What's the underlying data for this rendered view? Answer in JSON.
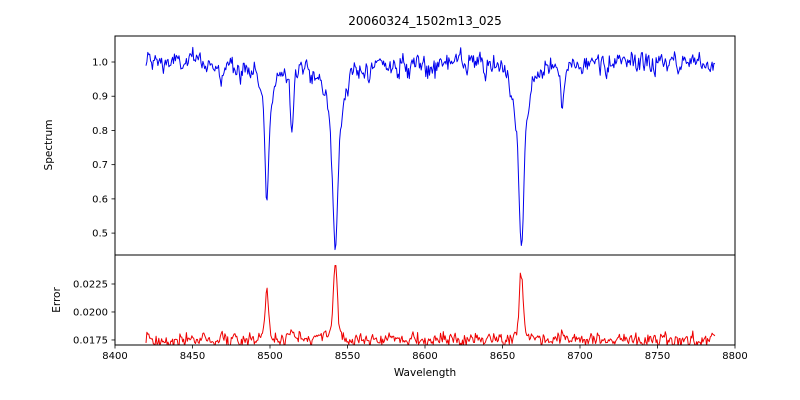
{
  "chart_data": {
    "type": "line",
    "title": "20060324_1502m13_025",
    "xlabel": "Wavelength",
    "grid": false,
    "legend": "none",
    "xlim": [
      8400,
      8800
    ],
    "x_data_range": [
      8420,
      8787
    ],
    "x_ticks": [
      {
        "value": 8400,
        "label": "8400"
      },
      {
        "value": 8450,
        "label": "8450"
      },
      {
        "value": 8500,
        "label": "8500"
      },
      {
        "value": 8550,
        "label": "8550"
      },
      {
        "value": 8600,
        "label": "8600"
      },
      {
        "value": 8650,
        "label": "8650"
      },
      {
        "value": 8700,
        "label": "8700"
      },
      {
        "value": 8750,
        "label": "8750"
      },
      {
        "value": 8800,
        "label": "8800"
      }
    ],
    "panels": [
      {
        "name": "spectrum",
        "ylabel": "Spectrum",
        "line_color": "#0000ee",
        "ylim": [
          0.436,
          1.076
        ],
        "y_ticks": [
          {
            "value": 0.5,
            "label": "0.5"
          },
          {
            "value": 0.6,
            "label": "0.6"
          },
          {
            "value": 0.7,
            "label": "0.7"
          },
          {
            "value": 0.8,
            "label": "0.8"
          },
          {
            "value": 0.9,
            "label": "0.9"
          },
          {
            "value": 1.0,
            "label": "1.0"
          }
        ],
        "continuum": 1.0,
        "noise_sigma": 0.015,
        "noise_ar": 0.45,
        "absorption_lines": [
          {
            "center": 8498.0,
            "depth": 0.4,
            "core": 1.1,
            "wing": 3.5
          },
          {
            "center": 8542.1,
            "depth": 0.55,
            "core": 1.4,
            "wing": 5.0
          },
          {
            "center": 8662.1,
            "depth": 0.54,
            "core": 1.3,
            "wing": 5.0
          },
          {
            "center": 8514.2,
            "depth": 0.16,
            "core": 0.9,
            "wing": 1.4
          },
          {
            "center": 8468.5,
            "depth": 0.09,
            "core": 0.9,
            "wing": 1.2
          },
          {
            "center": 8583.0,
            "depth": 0.05,
            "core": 0.8,
            "wing": 1.0
          },
          {
            "center": 8688.6,
            "depth": 0.13,
            "core": 0.9,
            "wing": 1.4
          },
          {
            "center": 8717.0,
            "depth": 0.07,
            "core": 0.8,
            "wing": 1.0
          }
        ]
      },
      {
        "name": "error",
        "ylabel": "Error",
        "line_color": "#ee0000",
        "ylim": [
          0.01705,
          0.02509
        ],
        "y_ticks": [
          {
            "value": 0.0175,
            "label": "0.0175"
          },
          {
            "value": 0.02,
            "label": "0.0200"
          },
          {
            "value": 0.0225,
            "label": "0.0225"
          }
        ],
        "baseline": 0.0175,
        "noise_sigma": 0.0003,
        "noise_ar": 0.3,
        "peaks": [
          {
            "center": 8498.0,
            "height": 0.0043,
            "core": 1.0,
            "wing": 1.8
          },
          {
            "center": 8542.1,
            "height": 0.0068,
            "core": 1.1,
            "wing": 2.0
          },
          {
            "center": 8662.1,
            "height": 0.006,
            "core": 1.0,
            "wing": 2.0
          },
          {
            "center": 8514.2,
            "height": 0.0009,
            "core": 0.9,
            "wing": 1.2
          },
          {
            "center": 8688.6,
            "height": 0.0008,
            "core": 0.9,
            "wing": 1.2
          }
        ]
      }
    ]
  }
}
